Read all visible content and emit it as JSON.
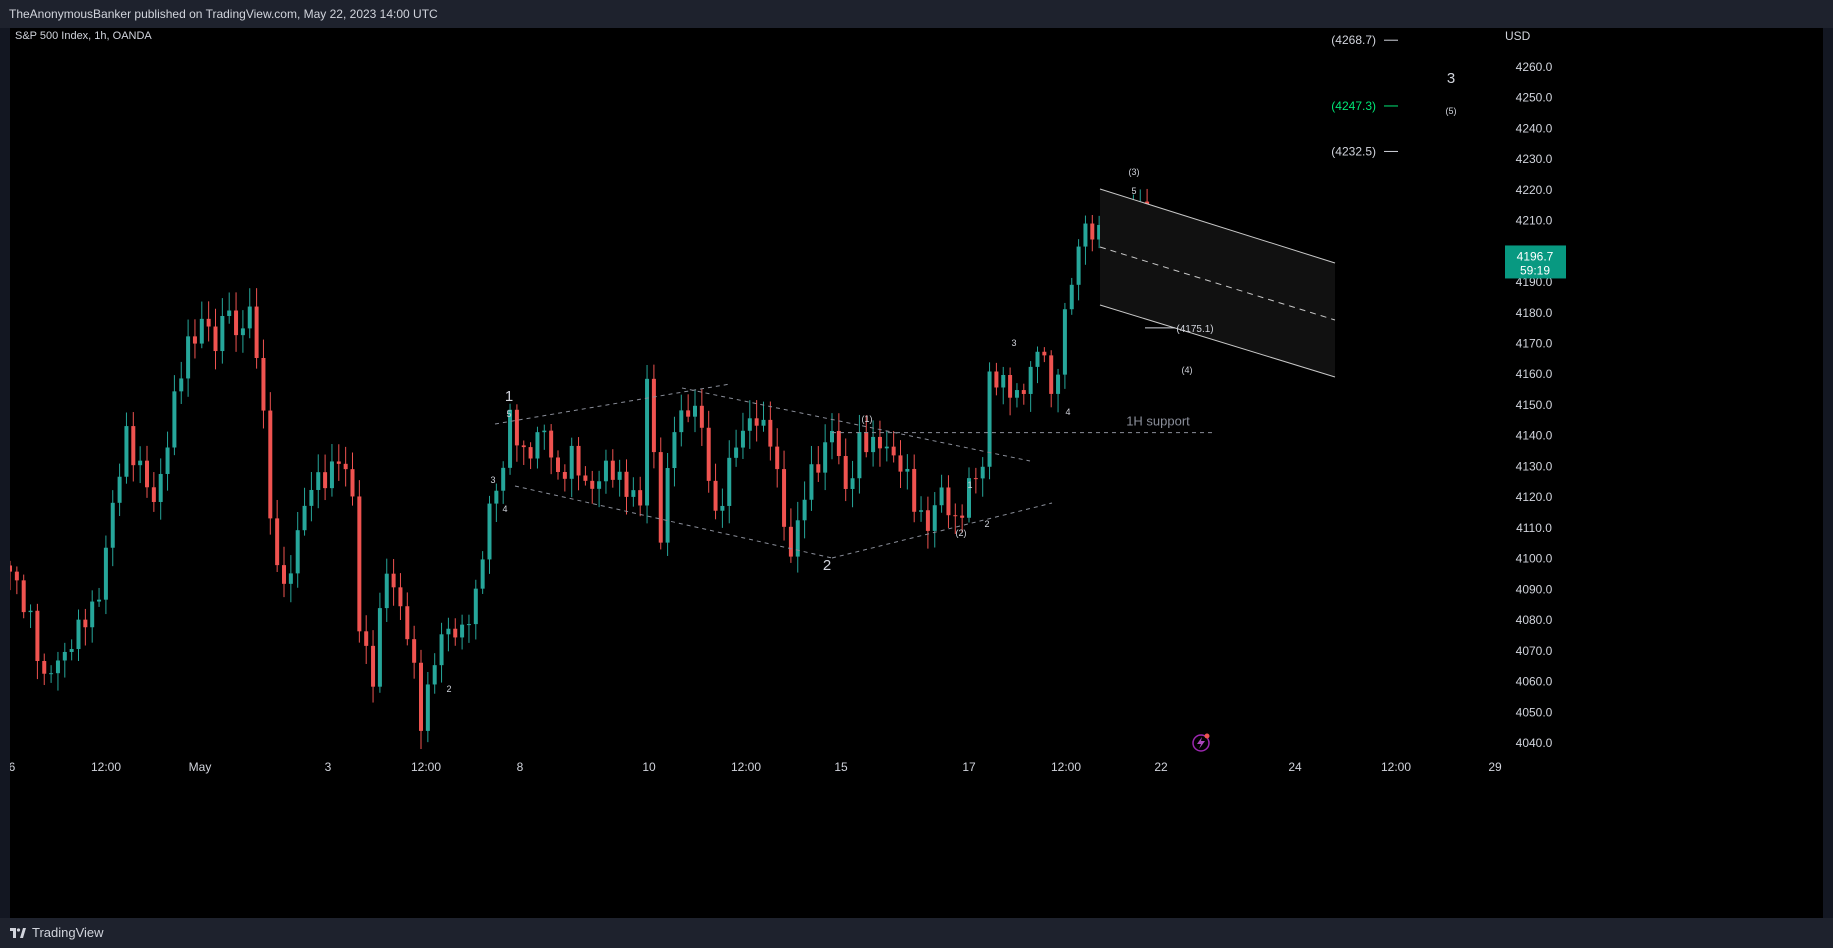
{
  "header": {
    "publisher": "TheAnonymousBanker published on TradingView.com, May 22, 2023 14:00 UTC"
  },
  "symbol": {
    "label": "S&P 500 Index, 1h, OANDA"
  },
  "footer": {
    "brand": "TradingView"
  },
  "colors": {
    "up": "#26a69a",
    "down": "#ef5350",
    "price_tag": "#089981",
    "green_level": "#00e676",
    "background": "#000000"
  },
  "chart_data": {
    "type": "candlestick",
    "currency": "USD",
    "y_ticks": [
      4040.0,
      4050.0,
      4060.0,
      4070.0,
      4080.0,
      4090.0,
      4100.0,
      4110.0,
      4120.0,
      4130.0,
      4140.0,
      4150.0,
      4160.0,
      4170.0,
      4180.0,
      4190.0,
      4200.0,
      4210.0,
      4220.0,
      4230.0,
      4240.0,
      4250.0,
      4260.0
    ],
    "y_tick_labels": [
      "4040.0",
      "4050.0",
      "4060.0",
      "4070.0",
      "4080.0",
      "4090.0",
      "4100.0",
      "4110.0",
      "4120.0",
      "4130.0",
      "4140.0",
      "4150.0",
      "4160.0",
      "4170.0",
      "4180.0",
      "4190.0",
      "4200.0",
      "4210.0",
      "4220.0",
      "4230.0",
      "4240.0",
      "4250.0",
      "4260.0"
    ],
    "x_labels": [
      "6",
      "12:00",
      "May",
      "3",
      "12:00",
      "8",
      "10",
      "12:00",
      "15",
      "17",
      "12:00",
      "22",
      "24",
      "12:00",
      "29"
    ],
    "last_price": {
      "value": 4196.7,
      "label": "4196.7",
      "countdown": "59:19"
    },
    "path": [
      [
        0,
        4094
      ],
      [
        3,
        4082
      ],
      [
        5,
        4058
      ],
      [
        7,
        4068
      ],
      [
        10,
        4075
      ],
      [
        13,
        4090
      ],
      [
        15,
        4115
      ],
      [
        17,
        4142
      ],
      [
        19,
        4128
      ],
      [
        21,
        4118
      ],
      [
        24,
        4150
      ],
      [
        26,
        4170
      ],
      [
        28,
        4178
      ],
      [
        30,
        4168
      ],
      [
        32,
        4186
      ],
      [
        33,
        4170
      ],
      [
        35,
        4180
      ],
      [
        37,
        4152
      ],
      [
        38,
        4110
      ],
      [
        40,
        4088
      ],
      [
        42,
        4110
      ],
      [
        44,
        4122
      ],
      [
        46,
        4128
      ],
      [
        48,
        4132
      ],
      [
        50,
        4120
      ],
      [
        51,
        4080
      ],
      [
        53,
        4060
      ],
      [
        55,
        4098
      ],
      [
        57,
        4085
      ],
      [
        59,
        4062
      ],
      [
        60,
        4048
      ],
      [
        62,
        4068
      ],
      [
        64,
        4076
      ],
      [
        66,
        4078
      ],
      [
        68,
        4085
      ],
      [
        70,
        4118
      ],
      [
        72,
        4130
      ],
      [
        73,
        4144
      ],
      [
        75,
        4135
      ],
      [
        78,
        4140
      ],
      [
        80,
        4128
      ],
      [
        82,
        4132
      ],
      [
        84,
        4124
      ],
      [
        87,
        4128
      ],
      [
        90,
        4125
      ],
      [
        92,
        4116
      ],
      [
        93,
        4158
      ],
      [
        95,
        4110
      ],
      [
        97,
        4142
      ],
      [
        100,
        4152
      ],
      [
        101,
        4140
      ],
      [
        103,
        4112
      ],
      [
        105,
        4132
      ],
      [
        107,
        4140
      ],
      [
        109,
        4148
      ],
      [
        111,
        4138
      ],
      [
        113,
        4112
      ],
      [
        114,
        4103
      ],
      [
        116,
        4120
      ],
      [
        118,
        4132
      ],
      [
        120,
        4143
      ],
      [
        122,
        4120
      ],
      [
        124,
        4140
      ],
      [
        126,
        4135
      ],
      [
        128,
        4138
      ],
      [
        130,
        4130
      ],
      [
        132,
        4118
      ],
      [
        134,
        4112
      ],
      [
        136,
        4120
      ],
      [
        138,
        4113
      ],
      [
        140,
        4122
      ],
      [
        142,
        4130
      ],
      [
        143,
        4162
      ],
      [
        145,
        4155
      ],
      [
        147,
        4153
      ],
      [
        149,
        4162
      ],
      [
        151,
        4167
      ],
      [
        152,
        4152
      ],
      [
        154,
        4178
      ],
      [
        156,
        4200
      ],
      [
        157,
        4210
      ],
      [
        159,
        4205
      ],
      [
        161,
        4203
      ],
      [
        163,
        4210
      ],
      [
        165,
        4216
      ],
      [
        166,
        4205
      ],
      [
        167,
        4188
      ],
      [
        168,
        4182
      ],
      [
        170,
        4185
      ],
      [
        172,
        4190
      ],
      [
        175,
        4192
      ],
      [
        177,
        4196.7
      ]
    ],
    "annotations": {
      "wave_1": "1",
      "wave_2": "2",
      "wave_3_target": "3",
      "sub_3": "(3)",
      "sub_4": "(4)",
      "sub_5": "(5)",
      "sub_1": "(1)",
      "sub_2": "(2)",
      "n5": "5",
      "n3": "3",
      "n4": "4",
      "n2": "2",
      "n1": "1",
      "support": "1H support",
      "level_4175": "(4175.1)"
    },
    "levels": [
      {
        "value": 4268.7,
        "label": "(4268.7)",
        "color": "#d1d4dc"
      },
      {
        "value": 4247.3,
        "label": "(4247.3)",
        "color": "#00e676"
      },
      {
        "value": 4232.5,
        "label": "(4232.5)",
        "color": "#d1d4dc"
      }
    ],
    "support_level": 4141
  }
}
